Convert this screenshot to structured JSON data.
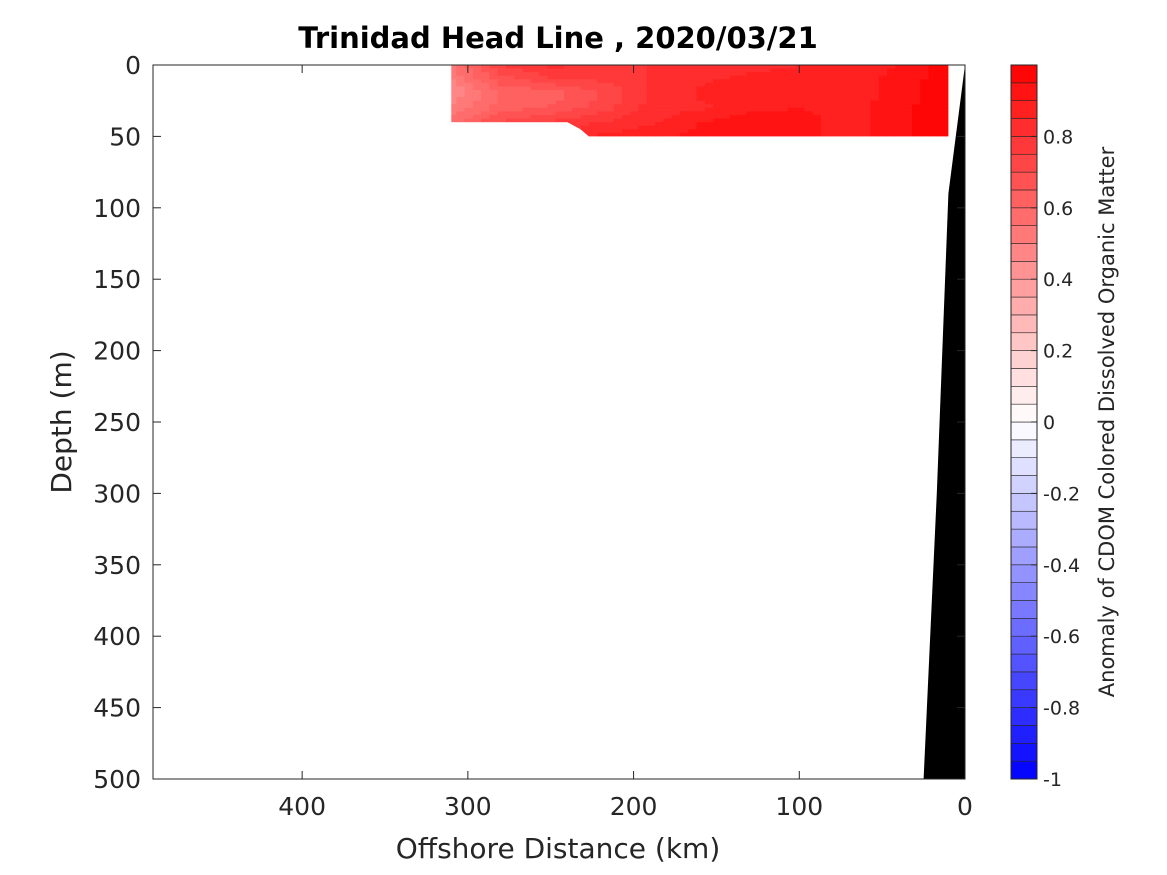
{
  "chart_data": {
    "type": "heatmap",
    "title": "Trinidad Head Line , 2020/03/21",
    "xlabel": "Offshore Distance (km)",
    "ylabel": "Depth (m)",
    "xlim": [
      490,
      0
    ],
    "ylim": [
      0,
      500
    ],
    "x_ticks": [
      "400",
      "300",
      "200",
      "100",
      "0"
    ],
    "y_ticks": [
      "0",
      "50",
      "100",
      "150",
      "200",
      "250",
      "300",
      "350",
      "400",
      "450",
      "500"
    ],
    "colorbar": {
      "label": "Anomaly of CDOM Colored Dissolved Organic Matter",
      "range": [
        -1,
        1
      ],
      "levels": 40,
      "ticks": [
        "-1",
        "-0.8",
        "-0.6",
        "-0.4",
        "-0.2",
        "0",
        "0.2",
        "0.4",
        "0.6",
        "0.8"
      ],
      "colormap": "blue-white-red",
      "low_color": "#0000ff",
      "mid_color": "#ffffff",
      "high_color": "#ff0000"
    },
    "field": {
      "x_km": [
        310,
        280,
        250,
        220,
        190,
        160,
        130,
        100,
        70,
        40,
        10
      ],
      "depth_m": [
        0,
        10,
        20,
        30,
        40,
        50
      ],
      "values": [
        [
          0.55,
          0.75,
          0.82,
          0.78,
          0.8,
          0.82,
          0.84,
          0.85,
          0.86,
          0.9,
          0.98
        ],
        [
          0.5,
          0.68,
          0.74,
          0.76,
          0.8,
          0.84,
          0.86,
          0.86,
          0.88,
          0.92,
          0.98
        ],
        [
          0.45,
          0.6,
          0.62,
          0.7,
          0.8,
          0.86,
          0.9,
          0.88,
          0.86,
          0.92,
          0.99
        ],
        [
          0.52,
          0.62,
          0.66,
          0.72,
          0.82,
          0.84,
          0.88,
          0.9,
          0.88,
          0.93,
          0.99
        ],
        [
          0.58,
          0.7,
          0.76,
          0.8,
          0.84,
          0.9,
          0.94,
          0.92,
          0.88,
          0.93,
          0.99
        ],
        [
          null,
          null,
          null,
          0.86,
          0.88,
          0.92,
          0.95,
          0.92,
          0.88,
          0.93,
          0.99
        ]
      ],
      "data_edge": [
        [
          310,
          0
        ],
        [
          310,
          40
        ],
        [
          240,
          40
        ],
        [
          232,
          45
        ],
        [
          227,
          50
        ],
        [
          10,
          50
        ],
        [
          10,
          0
        ]
      ]
    },
    "bathymetry": {
      "color": "#000000",
      "points": [
        [
          0,
          0
        ],
        [
          10,
          90
        ],
        [
          17,
          300
        ],
        [
          25,
          500
        ]
      ]
    }
  }
}
